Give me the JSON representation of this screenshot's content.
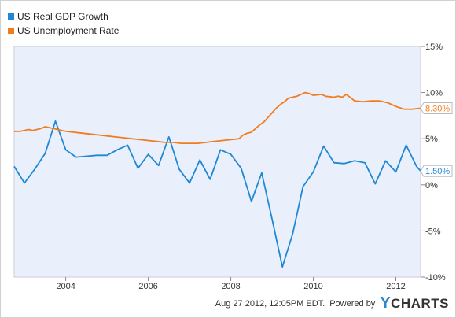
{
  "chart_data": {
    "type": "line",
    "title": "",
    "xlabel": "",
    "ylabel": "",
    "ylim": [
      -10,
      15
    ],
    "xlim": [
      2002.75,
      2012.6
    ],
    "x_ticks": [
      "2004",
      "2006",
      "2008",
      "2010",
      "2012"
    ],
    "y_ticks": [
      "15%",
      "10%",
      "5%",
      "0%",
      "-5%",
      "-10%"
    ],
    "legend_position": "top-left",
    "grid": false,
    "series": [
      {
        "name": "US Real GDP Growth",
        "color": "#1f88d5",
        "end_label": "1.50%",
        "points": [
          [
            2002.75,
            2.0
          ],
          [
            2003.0,
            0.2
          ],
          [
            2003.25,
            1.7
          ],
          [
            2003.5,
            3.4
          ],
          [
            2003.75,
            6.9
          ],
          [
            2004.0,
            3.8
          ],
          [
            2004.25,
            3.0
          ],
          [
            2004.5,
            3.1
          ],
          [
            2004.75,
            3.2
          ],
          [
            2005.0,
            3.2
          ],
          [
            2005.25,
            3.8
          ],
          [
            2005.5,
            4.3
          ],
          [
            2005.75,
            1.8
          ],
          [
            2006.0,
            3.3
          ],
          [
            2006.25,
            2.1
          ],
          [
            2006.5,
            5.2
          ],
          [
            2006.75,
            1.7
          ],
          [
            2007.0,
            0.2
          ],
          [
            2007.25,
            2.7
          ],
          [
            2007.5,
            0.6
          ],
          [
            2007.75,
            3.8
          ],
          [
            2008.0,
            3.3
          ],
          [
            2008.25,
            1.8
          ],
          [
            2008.5,
            -1.8
          ],
          [
            2008.75,
            1.3
          ],
          [
            2009.0,
            -3.7
          ],
          [
            2009.25,
            -8.9
          ],
          [
            2009.5,
            -5.3
          ],
          [
            2009.75,
            -0.2
          ],
          [
            2010.0,
            1.4
          ],
          [
            2010.25,
            4.2
          ],
          [
            2010.5,
            2.4
          ],
          [
            2010.75,
            2.3
          ],
          [
            2011.0,
            2.6
          ],
          [
            2011.25,
            2.4
          ],
          [
            2011.5,
            0.1
          ],
          [
            2011.75,
            2.6
          ],
          [
            2012.0,
            1.4
          ],
          [
            2012.25,
            4.3
          ],
          [
            2012.5,
            2.0
          ],
          [
            2012.6,
            1.5
          ]
        ]
      },
      {
        "name": "US Unemployment Rate",
        "color": "#f27c1c",
        "end_label": "8.30%",
        "points": [
          [
            2002.75,
            5.8
          ],
          [
            2002.9,
            5.8
          ],
          [
            2003.0,
            5.9
          ],
          [
            2003.1,
            6.0
          ],
          [
            2003.2,
            5.9
          ],
          [
            2003.3,
            6.0
          ],
          [
            2003.4,
            6.1
          ],
          [
            2003.5,
            6.3
          ],
          [
            2003.6,
            6.2
          ],
          [
            2003.7,
            6.1
          ],
          [
            2003.8,
            6.0
          ],
          [
            2003.9,
            5.9
          ],
          [
            2004.0,
            5.8
          ],
          [
            2004.2,
            5.7
          ],
          [
            2004.4,
            5.6
          ],
          [
            2004.6,
            5.5
          ],
          [
            2004.8,
            5.4
          ],
          [
            2005.0,
            5.3
          ],
          [
            2005.2,
            5.2
          ],
          [
            2005.4,
            5.1
          ],
          [
            2005.6,
            5.0
          ],
          [
            2005.8,
            4.9
          ],
          [
            2006.0,
            4.8
          ],
          [
            2006.2,
            4.7
          ],
          [
            2006.4,
            4.6
          ],
          [
            2006.6,
            4.6
          ],
          [
            2006.8,
            4.5
          ],
          [
            2007.0,
            4.5
          ],
          [
            2007.2,
            4.5
          ],
          [
            2007.4,
            4.6
          ],
          [
            2007.6,
            4.7
          ],
          [
            2007.8,
            4.8
          ],
          [
            2008.0,
            4.9
          ],
          [
            2008.2,
            5.0
          ],
          [
            2008.3,
            5.4
          ],
          [
            2008.4,
            5.6
          ],
          [
            2008.5,
            5.7
          ],
          [
            2008.6,
            6.1
          ],
          [
            2008.7,
            6.5
          ],
          [
            2008.8,
            6.8
          ],
          [
            2008.9,
            7.3
          ],
          [
            2009.0,
            7.8
          ],
          [
            2009.1,
            8.3
          ],
          [
            2009.2,
            8.7
          ],
          [
            2009.3,
            9.0
          ],
          [
            2009.4,
            9.4
          ],
          [
            2009.5,
            9.5
          ],
          [
            2009.6,
            9.6
          ],
          [
            2009.7,
            9.8
          ],
          [
            2009.8,
            10.0
          ],
          [
            2009.9,
            9.9
          ],
          [
            2010.0,
            9.7
          ],
          [
            2010.2,
            9.8
          ],
          [
            2010.3,
            9.6
          ],
          [
            2010.5,
            9.5
          ],
          [
            2010.6,
            9.6
          ],
          [
            2010.7,
            9.5
          ],
          [
            2010.8,
            9.8
          ],
          [
            2011.0,
            9.1
          ],
          [
            2011.2,
            9.0
          ],
          [
            2011.4,
            9.1
          ],
          [
            2011.6,
            9.1
          ],
          [
            2011.8,
            8.9
          ],
          [
            2012.0,
            8.5
          ],
          [
            2012.2,
            8.2
          ],
          [
            2012.4,
            8.2
          ],
          [
            2012.6,
            8.3
          ]
        ]
      }
    ]
  },
  "footer": {
    "timestamp": "Aug 27 2012, 12:05PM EDT.",
    "powered_by": "Powered by",
    "brand_mark": "Y",
    "brand_text": "CHARTS"
  }
}
